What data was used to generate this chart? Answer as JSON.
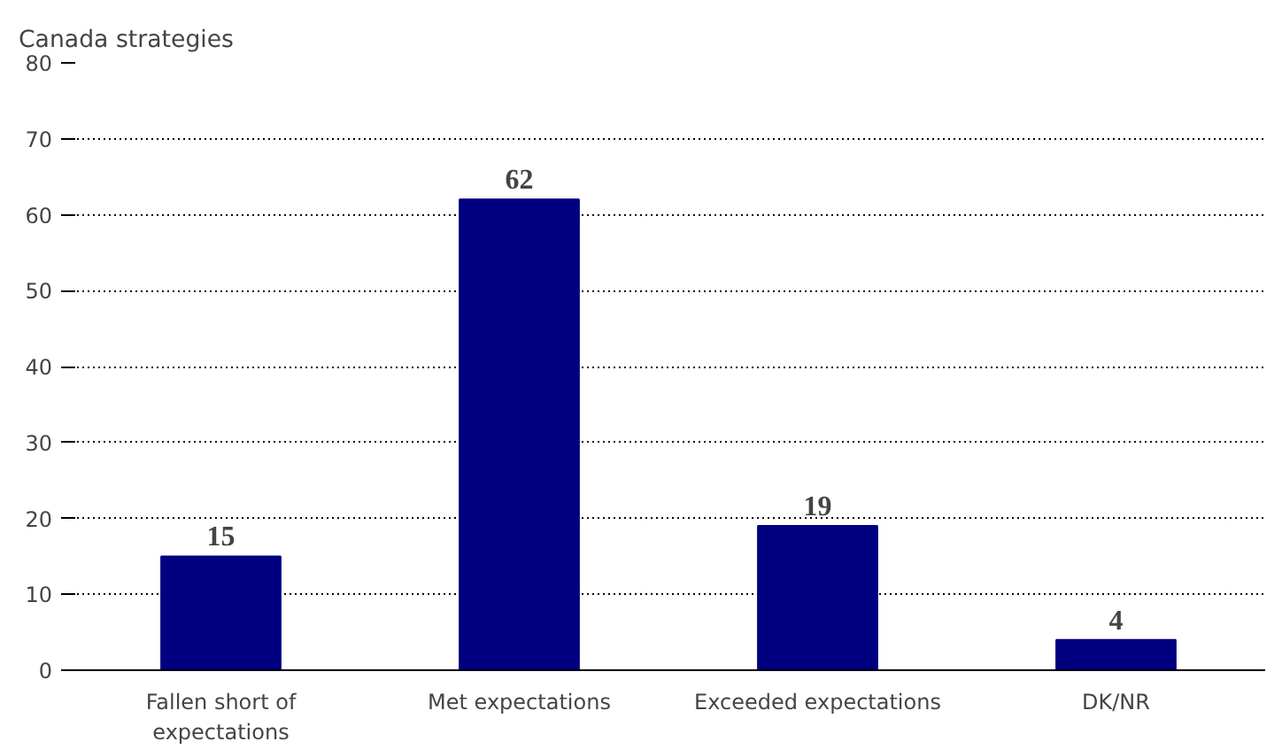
{
  "chart_data": {
    "type": "bar",
    "title": "Canada strategies",
    "categories": [
      "Fallen short of expectations",
      "Met expectations",
      "Exceeded expectations",
      "DK/NR"
    ],
    "values": [
      15,
      62,
      19,
      4
    ],
    "color": "#000080",
    "ylim": [
      0,
      80
    ],
    "yticks": [
      0,
      10,
      20,
      30,
      40,
      50,
      60,
      70,
      80
    ],
    "grid": "y",
    "data_labels": true
  }
}
